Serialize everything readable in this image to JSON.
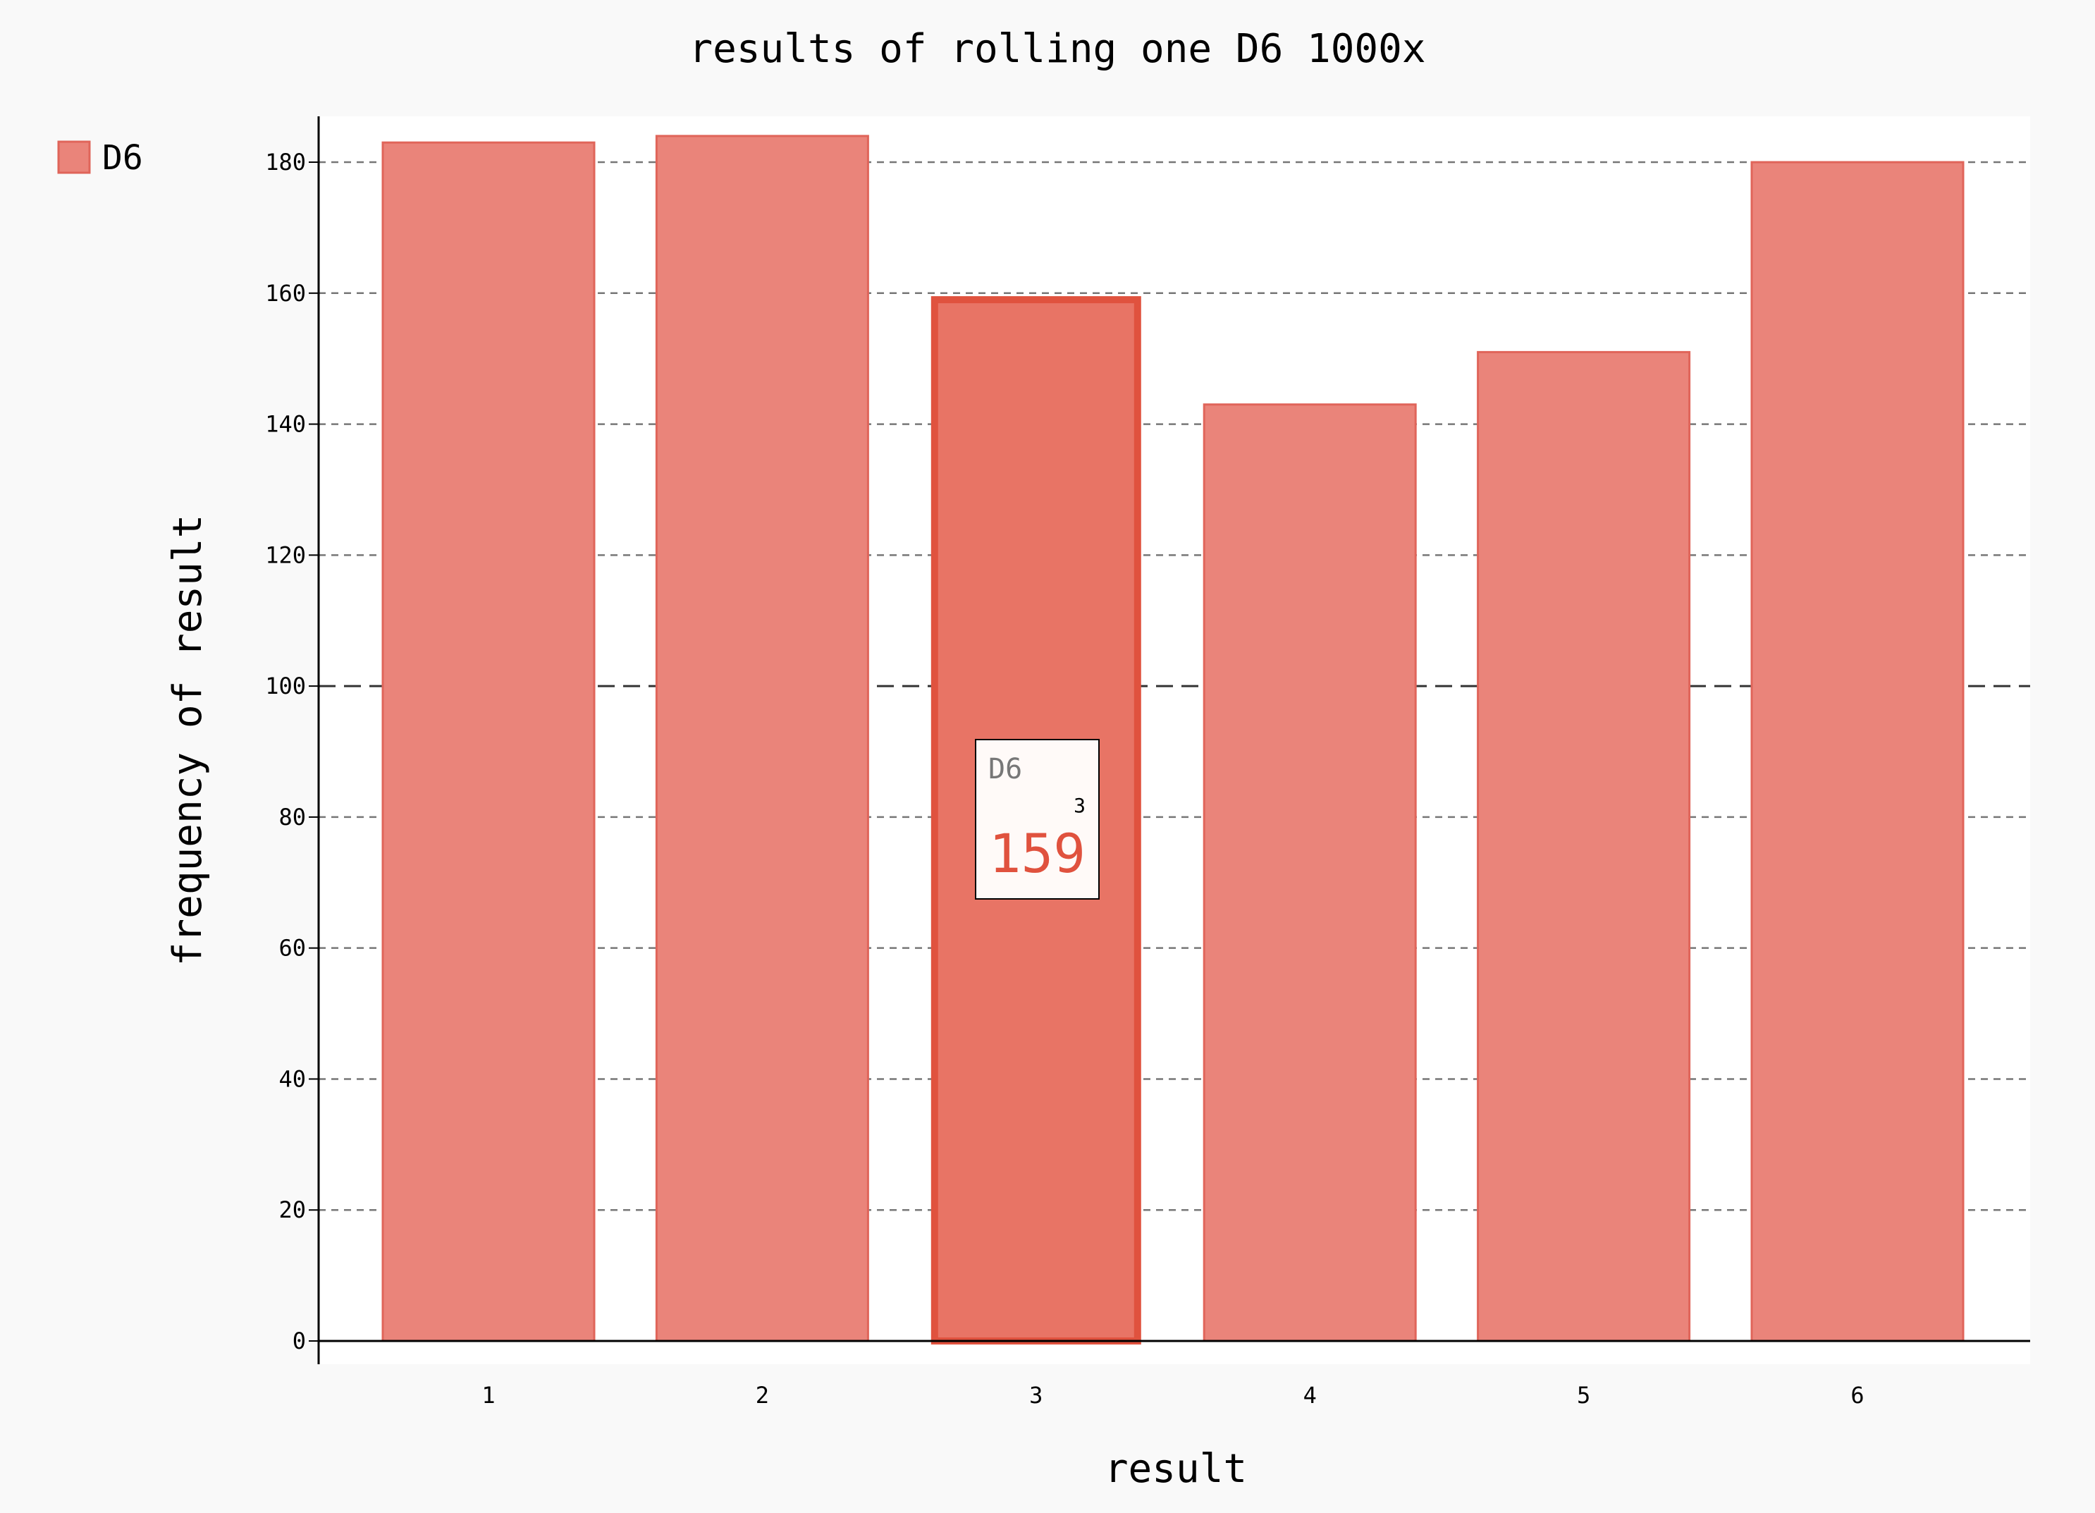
{
  "chart_data": {
    "type": "bar",
    "title": "results of rolling one D6 1000x",
    "xlabel": "result",
    "ylabel": "frequency of result",
    "categories": [
      "1",
      "2",
      "3",
      "4",
      "5",
      "6"
    ],
    "series": [
      {
        "name": "D6",
        "values": [
          183,
          184,
          159,
          143,
          151,
          180
        ]
      }
    ],
    "ylim": [
      0,
      187
    ],
    "yticks": [
      0,
      20,
      40,
      60,
      80,
      100,
      120,
      140,
      160,
      180
    ],
    "grid": true,
    "legend": "top-left",
    "highlighted_index": 2,
    "tooltip": {
      "series": "D6",
      "x": "3",
      "value": "159"
    },
    "colors": {
      "bar_fill": "#ea847a",
      "bar_stroke": "#e0655a",
      "bar_highlight_fill": "#e87465",
      "bar_highlight_stroke": "#e0523e",
      "plot_background": "#ffffff",
      "page_background": "#f9f9f9",
      "tooltip_value": "#e0523e"
    }
  }
}
